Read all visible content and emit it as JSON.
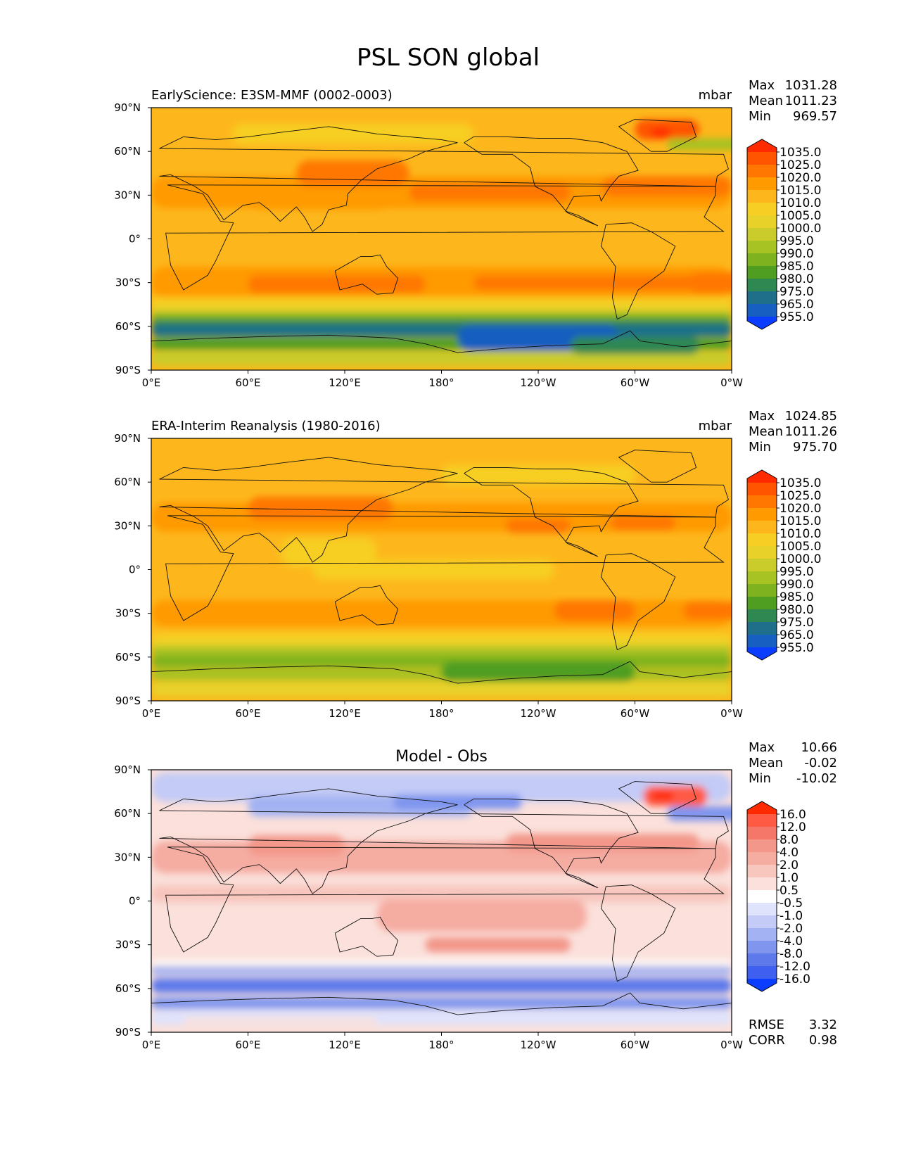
{
  "figure_title": "PSL SON global",
  "chart_data": [
    {
      "type": "heatmap",
      "panel": "test",
      "title_left": "EarlyScience: E3SM-MMF (0002-0003)",
      "title_center": "",
      "units": "mbar",
      "stats": [
        {
          "label": "Max",
          "value": "1031.28"
        },
        {
          "label": "Mean",
          "value": "1011.23"
        },
        {
          "label": "Min",
          "value": "969.57"
        }
      ],
      "x_ticks": [
        "0°E",
        "60°E",
        "120°E",
        "180°",
        "120°W",
        "60°W",
        "0°W"
      ],
      "y_ticks": [
        "90°N",
        "60°N",
        "30°N",
        "0°",
        "30°S",
        "60°S",
        "90°S"
      ],
      "xlim": [
        0,
        360
      ],
      "ylim": [
        -90,
        90
      ],
      "colorbar": {
        "levels": [
          "1035.0",
          "1025.0",
          "1020.0",
          "1015.0",
          "1010.0",
          "1005.0",
          "1000.0",
          "995.0",
          "990.0",
          "985.0",
          "980.0",
          "975.0",
          "965.0",
          "955.0"
        ],
        "colors": [
          "#ff2a00",
          "#ff5500",
          "#ff7700",
          "#ff9a00",
          "#fdb71c",
          "#f7ce24",
          "#e8d22a",
          "#c9cc2a",
          "#a6c223",
          "#7eb31f",
          "#4f9e22",
          "#2f8752",
          "#1f6f8b",
          "#175fc0",
          "#0b3dff"
        ]
      },
      "bottom_stats": []
    },
    {
      "type": "heatmap",
      "panel": "reference",
      "title_left": "ERA-Interim Reanalysis (1980-2016)",
      "title_center": "",
      "units": "mbar",
      "stats": [
        {
          "label": "Max",
          "value": "1024.85"
        },
        {
          "label": "Mean",
          "value": "1011.26"
        },
        {
          "label": "Min",
          "value": "975.70"
        }
      ],
      "x_ticks": [
        "0°E",
        "60°E",
        "120°E",
        "180°",
        "120°W",
        "60°W",
        "0°W"
      ],
      "y_ticks": [
        "90°N",
        "60°N",
        "30°N",
        "0°",
        "30°S",
        "60°S",
        "90°S"
      ],
      "xlim": [
        0,
        360
      ],
      "ylim": [
        -90,
        90
      ],
      "colorbar": {
        "levels": [
          "1035.0",
          "1025.0",
          "1020.0",
          "1015.0",
          "1010.0",
          "1005.0",
          "1000.0",
          "995.0",
          "990.0",
          "985.0",
          "980.0",
          "975.0",
          "965.0",
          "955.0"
        ],
        "colors": [
          "#ff2a00",
          "#ff5500",
          "#ff7700",
          "#ff9a00",
          "#fdb71c",
          "#f7ce24",
          "#e8d22a",
          "#c9cc2a",
          "#a6c223",
          "#7eb31f",
          "#4f9e22",
          "#2f8752",
          "#1f6f8b",
          "#175fc0",
          "#0b3dff"
        ]
      },
      "bottom_stats": []
    },
    {
      "type": "heatmap",
      "panel": "difference",
      "title_left": "",
      "title_center": "Model - Obs",
      "units": "",
      "stats": [
        {
          "label": "Max",
          "value": "10.66"
        },
        {
          "label": "Mean",
          "value": "-0.02"
        },
        {
          "label": "Min",
          "value": "-10.02"
        }
      ],
      "x_ticks": [
        "0°E",
        "60°E",
        "120°E",
        "180°",
        "120°W",
        "60°W",
        "0°W"
      ],
      "y_ticks": [
        "90°N",
        "60°N",
        "30°N",
        "0°",
        "30°S",
        "60°S",
        "90°S"
      ],
      "xlim": [
        0,
        360
      ],
      "ylim": [
        -90,
        90
      ],
      "colorbar": {
        "levels": [
          "16.0",
          "12.0",
          "8.0",
          "4.0",
          "2.0",
          "1.0",
          "0.5",
          "-0.5",
          "-1.0",
          "-2.0",
          "-4.0",
          "-8.0",
          "-12.0",
          "-16.0"
        ],
        "colors": [
          "#ff2a00",
          "#ff5a44",
          "#f5776a",
          "#f3978a",
          "#f5aca1",
          "#f7c6bd",
          "#fbe0db",
          "#ffffff",
          "#dfe3fb",
          "#c3cbf6",
          "#a3b2f2",
          "#7f95ee",
          "#5d79ea",
          "#3f5ff0",
          "#0b3dff"
        ]
      },
      "bottom_stats": [
        {
          "label": "RMSE",
          "value": "3.32"
        },
        {
          "label": "CORR",
          "value": "0.98"
        }
      ]
    }
  ]
}
